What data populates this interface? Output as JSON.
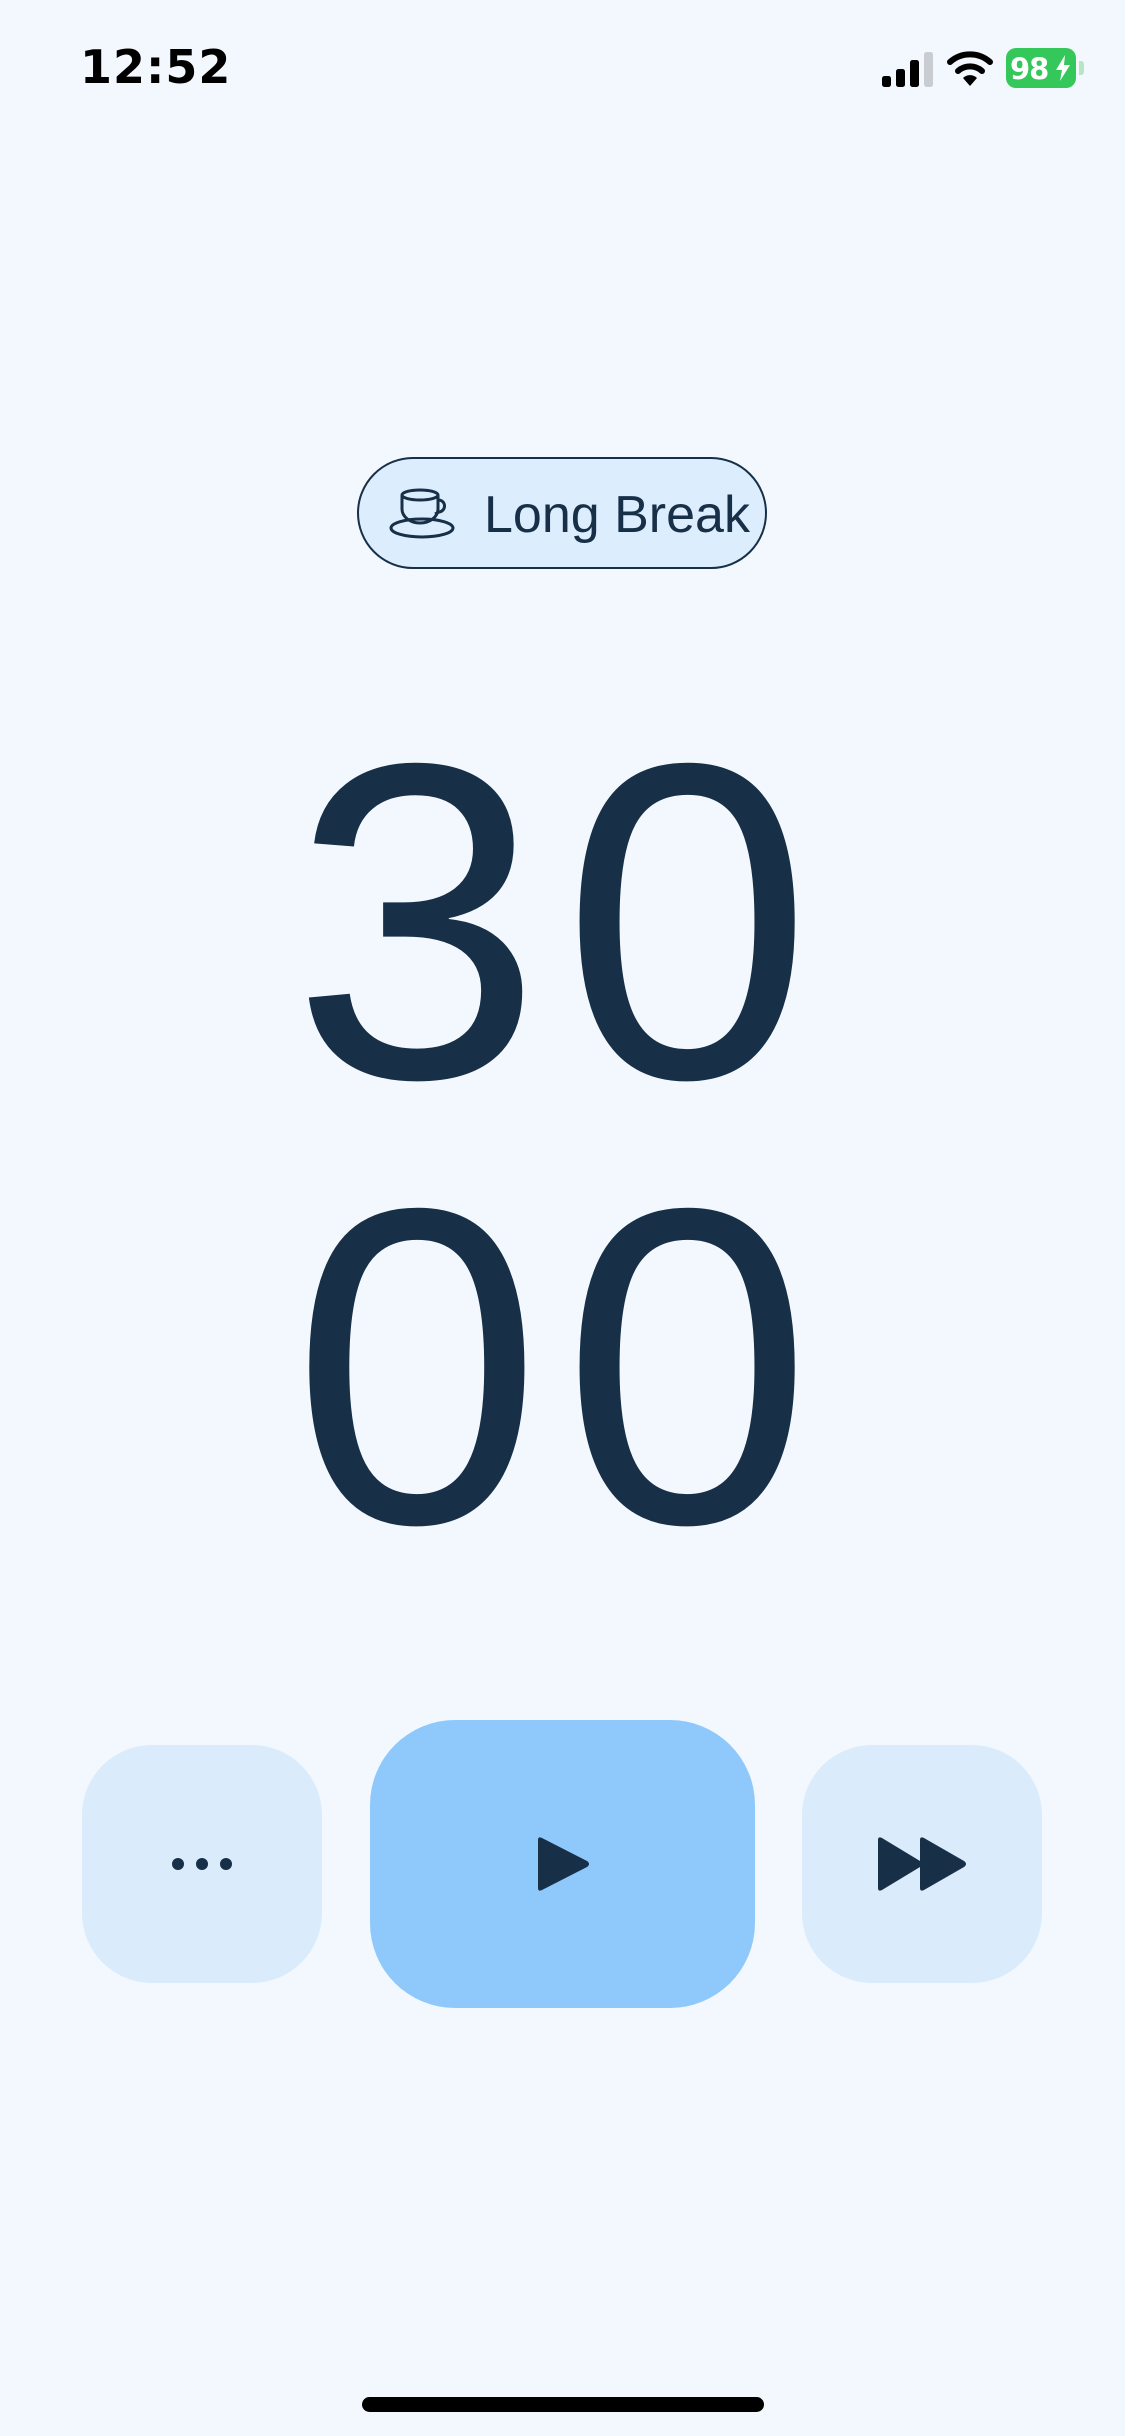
{
  "status_bar": {
    "time": "12:52",
    "battery_level": "98"
  },
  "mode": {
    "label": "Long Break",
    "icon": "coffee-cup-icon"
  },
  "timer": {
    "minutes": "30",
    "seconds": "00"
  },
  "controls": {
    "more_icon": "more-horizontal-icon",
    "play_icon": "play-icon",
    "skip_icon": "skip-forward-icon"
  },
  "colors": {
    "background": "#F2F8FD",
    "text": "#172F47",
    "pill_background": "#DCEEFD",
    "secondary_button": "#DAEBFB",
    "primary_button": "#8FC9FC",
    "battery": "#34C759"
  }
}
